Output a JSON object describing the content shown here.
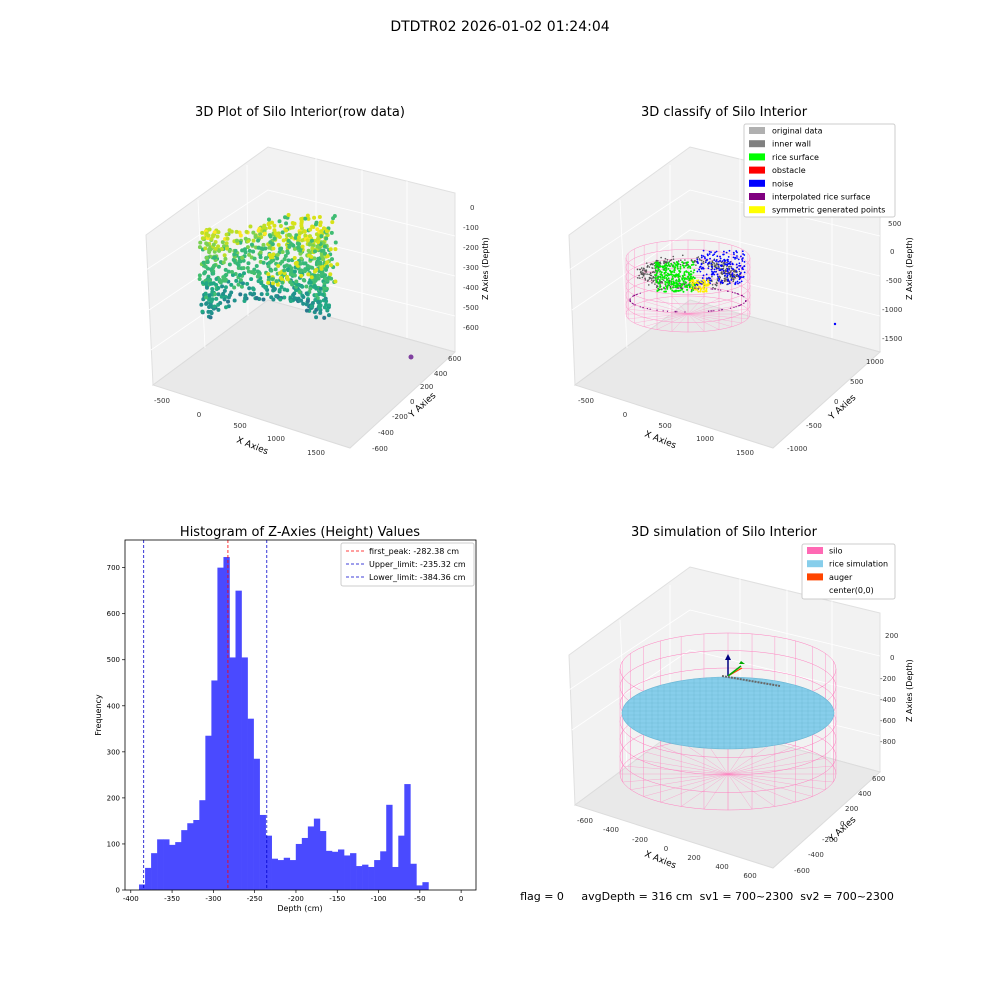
{
  "figure": {
    "title": "DTDTR02 2026-01-02 01:24:04",
    "footer": "flag = 0     avgDepth = 316 cm  sv1 = 700~2300  sv2 = 700~2300"
  },
  "panels": {
    "raw": {
      "title": "3D Plot of Silo Interior(row data)",
      "xlabel": "X Axies",
      "ylabel": "Y Axies",
      "zlabel": "Z Axies (Depth)",
      "xticks": [
        "-500",
        "0",
        "500",
        "1000",
        "1500"
      ],
      "yticks": [
        "-600",
        "-400",
        "-200",
        "0",
        "200",
        "400",
        "600"
      ],
      "zticks": [
        "0",
        "-100",
        "-200",
        "-300",
        "-400",
        "-500",
        "-600"
      ]
    },
    "classify": {
      "title": "3D classify of Silo Interior",
      "xlabel": "X Axies",
      "ylabel": "Y Axies",
      "zlabel": "Z Axies (Depth)",
      "xticks": [
        "-500",
        "0",
        "500",
        "1000",
        "1500"
      ],
      "yticks": [
        "-1000",
        "-500",
        "0",
        "500",
        "1000"
      ],
      "zticks": [
        "500",
        "0",
        "-500",
        "-1000",
        "-1500"
      ],
      "legend": [
        {
          "label": "original data",
          "color": "#b0b0b0"
        },
        {
          "label": "inner wall",
          "color": "#808080"
        },
        {
          "label": "rice surface",
          "color": "#00ff00"
        },
        {
          "label": "obstacle",
          "color": "#ff0000"
        },
        {
          "label": "noise",
          "color": "#0000ff"
        },
        {
          "label": "interpolated rice surface",
          "color": "#800080"
        },
        {
          "label": "symmetric generated points",
          "color": "#ffff00"
        }
      ]
    },
    "simulation": {
      "title": "3D simulation of Silo Interior",
      "xlabel": "X Axies",
      "ylabel": "Y Axies",
      "zlabel": "Z Axies (Depth)",
      "xticks": [
        "-600",
        "-400",
        "-200",
        "0",
        "200",
        "400",
        "600"
      ],
      "yticks": [
        "-600",
        "-400",
        "-200",
        "0",
        "200",
        "400",
        "600"
      ],
      "zticks": [
        "200",
        "0",
        "-200",
        "-400",
        "-600",
        "-800"
      ],
      "legend": [
        {
          "label": "silo",
          "color": "#ff69b4"
        },
        {
          "label": "rice simulation",
          "color": "#87ceeb"
        },
        {
          "label": "auger",
          "color": "#ff4500"
        },
        {
          "label": "center(0,0)",
          "color": ""
        }
      ]
    }
  },
  "chart_data": {
    "type": "bar",
    "title": "Histogram of Z-Axies (Height) Values",
    "xlabel": "Depth (cm)",
    "ylabel": "Frequency",
    "xlim": [
      -407,
      18
    ],
    "ylim": [
      0,
      760
    ],
    "xticks": [
      -400,
      -350,
      -300,
      -250,
      -200,
      -150,
      -100,
      -50,
      0
    ],
    "yticks": [
      0,
      100,
      200,
      300,
      400,
      500,
      600,
      700
    ],
    "bar_color": "#4a4aff",
    "bin_start": -390,
    "bin_width": 7.3,
    "values": [
      12,
      48,
      80,
      110,
      110,
      98,
      104,
      130,
      145,
      152,
      195,
      335,
      455,
      700,
      723,
      505,
      650,
      505,
      372,
      285,
      163,
      118,
      68,
      65,
      70,
      65,
      100,
      113,
      138,
      155,
      128,
      85,
      83,
      88,
      75,
      80,
      52,
      55,
      50,
      65,
      84,
      185,
      50,
      118,
      230,
      57,
      10,
      17
    ],
    "vlines": [
      {
        "label": "first_peak: -282.38 cm",
        "x": -282.38,
        "color": "#ff0000"
      },
      {
        "label": "Upper_limit: -235.32 cm",
        "x": -235.32,
        "color": "#0000cc"
      },
      {
        "label": "Lower_limit: -384.36 cm",
        "x": -384.36,
        "color": "#0000cc"
      }
    ]
  }
}
